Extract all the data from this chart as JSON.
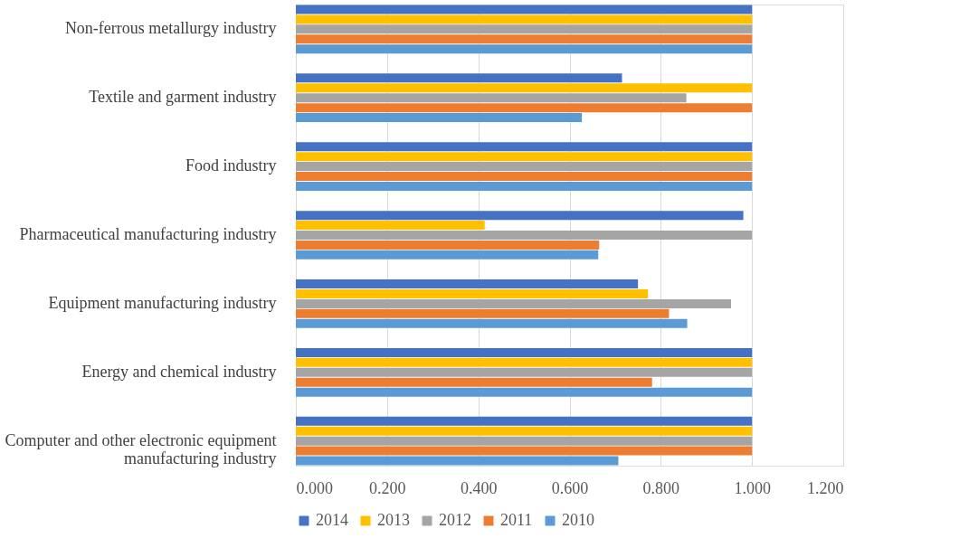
{
  "chart_data": {
    "type": "bar",
    "orientation": "horizontal",
    "categories": [
      "Non-ferrous metallurgy industry",
      "Textile and garment industry",
      "Food industry",
      "Pharmaceutical manufacturing industry",
      "Equipment manufacturing industry",
      "Energy and chemical industry",
      "Computer and other electronic equipment manufacturing industry"
    ],
    "series": [
      {
        "name": "2014",
        "color": "#4472c4",
        "values": [
          1.0,
          0.715,
          1.0,
          0.981,
          0.75,
          1.0,
          1.0
        ]
      },
      {
        "name": "2013",
        "color": "#ffc000",
        "values": [
          1.0,
          1.0,
          1.0,
          0.414,
          0.772,
          1.0,
          1.0
        ]
      },
      {
        "name": "2012",
        "color": "#a5a5a5",
        "values": [
          1.0,
          0.856,
          1.0,
          1.0,
          0.954,
          1.0,
          1.0
        ]
      },
      {
        "name": "2011",
        "color": "#ed7d31",
        "values": [
          1.0,
          1.0,
          1.0,
          0.665,
          0.818,
          0.781,
          1.0
        ]
      },
      {
        "name": "2010",
        "color": "#5b9bd5",
        "values": [
          1.0,
          0.627,
          1.0,
          0.663,
          0.858,
          1.0,
          0.707
        ]
      }
    ],
    "xlim": [
      0,
      1.2
    ],
    "xticks": [
      {
        "value": 0,
        "label": "0.000"
      },
      {
        "value": 0.2,
        "label": "0.200"
      },
      {
        "value": 0.4,
        "label": "0.400"
      },
      {
        "value": 0.6,
        "label": "0.600"
      },
      {
        "value": 0.8,
        "label": "0.800"
      },
      {
        "value": 1.0,
        "label": "1.000"
      },
      {
        "value": 1.2,
        "label": "1.200"
      }
    ],
    "grid": "x",
    "legend": "bottom"
  }
}
